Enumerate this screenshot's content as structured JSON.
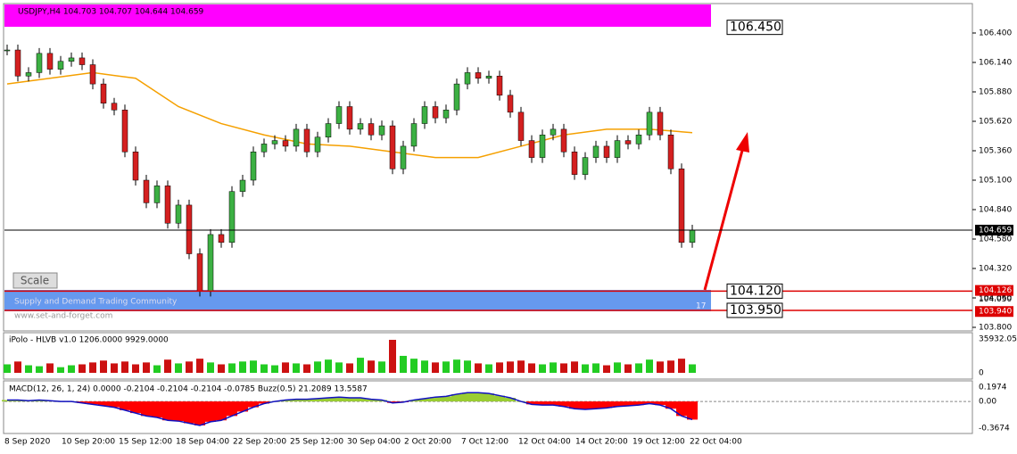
{
  "header": {
    "symbol_line": "USDJPY,H4  104.703 104.707 104.644 104.659"
  },
  "price_chart": {
    "ticks": [
      106.4,
      106.14,
      105.88,
      105.62,
      105.36,
      105.1,
      104.84,
      104.58,
      104.32,
      104.06,
      103.8
    ],
    "tick_labels": [
      "106.400",
      "106.140",
      "105.880",
      "105.620",
      "105.360",
      "105.100",
      "104.840",
      "104.580",
      "104.320",
      "104.060",
      "103.800"
    ],
    "closes": [
      106.25,
      106.02,
      106.05,
      106.22,
      106.08,
      106.15,
      106.18,
      106.12,
      105.95,
      105.78,
      105.72,
      105.35,
      105.1,
      104.9,
      105.05,
      104.72,
      104.88,
      104.45,
      104.12,
      104.62,
      104.55,
      105.0,
      105.1,
      105.35,
      105.42,
      105.45,
      105.4,
      105.55,
      105.35,
      105.48,
      105.6,
      105.75,
      105.55,
      105.6,
      105.5,
      105.58,
      105.2,
      105.4,
      105.6,
      105.75,
      105.65,
      105.72,
      105.95,
      106.05,
      106.0,
      106.02,
      105.85,
      105.7,
      105.45,
      105.3,
      105.5,
      105.55,
      105.35,
      105.15,
      105.3,
      105.4,
      105.3,
      105.45,
      105.42,
      105.5,
      105.7,
      105.5,
      105.2,
      104.55,
      104.659
    ],
    "moving_average": [
      105.95,
      106.0,
      106.05,
      106.0,
      105.75,
      105.6,
      105.5,
      105.42,
      105.4,
      105.35,
      105.3,
      105.3,
      105.4,
      105.5,
      105.55,
      105.55,
      105.52
    ],
    "current_price": {
      "value": 104.659,
      "label": "104.659"
    },
    "levels": [
      {
        "value": 106.45,
        "label": "106.450"
      },
      {
        "value": 104.12,
        "label": "104.120"
      },
      {
        "value": 103.95,
        "label": "103.950"
      }
    ],
    "axis_marks": [
      {
        "value": 104.126,
        "label": "104.126"
      },
      {
        "value": 104.05,
        "label": "104.050"
      },
      {
        "value": 103.94,
        "label": "103.940"
      }
    ],
    "zone_text": "Supply and Demand Trading Community",
    "zone_url": "www.set-and-forget.com",
    "zone_count": "17",
    "scale_button": "Scale"
  },
  "volume_panel": {
    "title": "iPolo - HLVB v1.0 1206.0000 9929.0000",
    "ylim": [
      0,
      35932.05
    ],
    "ticks": [
      {
        "value": 35932.05,
        "label": "35932.05"
      },
      0
    ],
    "values": [
      9000,
      12000,
      8000,
      7000,
      10000,
      6000,
      8000,
      9000,
      11000,
      13000,
      10000,
      12000,
      9000,
      11000,
      8000,
      14000,
      10000,
      12000,
      15000,
      11000,
      9000,
      10000,
      12000,
      13000,
      9000,
      8000,
      11000,
      10000,
      9000,
      12000,
      14000,
      11000,
      10000,
      16000,
      13000,
      12000,
      35000,
      18000,
      15000,
      13000,
      11000,
      12000,
      14000,
      13000,
      10000,
      9000,
      11000,
      12000,
      13000,
      10000,
      9000,
      11000,
      10000,
      12000,
      9000,
      10000,
      8000,
      11000,
      9000,
      10000,
      14000,
      12000,
      13000,
      15000,
      9000
    ]
  },
  "macd_panel": {
    "title": "MACD(12, 26, 1, 24) 0.0000 -0.2104 -0.2104 -0.2104 -0.0785 Buzz(0.5) 21.2089 13.5587",
    "ylim": [
      -0.3674,
      0.1974
    ],
    "ticks": [
      0.1974,
      {
        "value": 0,
        "label": "0.00"
      },
      -0.3674
    ],
    "values": [
      0.02,
      0.02,
      0.01,
      0.02,
      0.01,
      0.0,
      0.0,
      -0.02,
      -0.04,
      -0.06,
      -0.08,
      -0.12,
      -0.16,
      -0.2,
      -0.22,
      -0.26,
      -0.27,
      -0.3,
      -0.33,
      -0.28,
      -0.26,
      -0.2,
      -0.14,
      -0.08,
      -0.03,
      0.0,
      0.02,
      0.03,
      0.03,
      0.04,
      0.05,
      0.06,
      0.05,
      0.05,
      0.03,
      0.02,
      -0.02,
      -0.01,
      0.02,
      0.04,
      0.06,
      0.07,
      0.1,
      0.12,
      0.12,
      0.11,
      0.08,
      0.05,
      0.0,
      -0.04,
      -0.05,
      -0.05,
      -0.07,
      -0.1,
      -0.11,
      -0.1,
      -0.09,
      -0.07,
      -0.06,
      -0.05,
      -0.03,
      -0.05,
      -0.1,
      -0.2,
      -0.25
    ]
  },
  "time_axis": [
    "8 Sep 2020",
    "10 Sep 20:00",
    "15 Sep 12:00",
    "18 Sep 04:00",
    "22 Sep 20:00",
    "25 Sep 12:00",
    "30 Sep 04:00",
    "2 Oct 20:00",
    "7 Oct 12:00",
    "12 Oct 04:00",
    "14 Oct 20:00",
    "19 Oct 12:00",
    "22 Oct 04:00"
  ]
}
